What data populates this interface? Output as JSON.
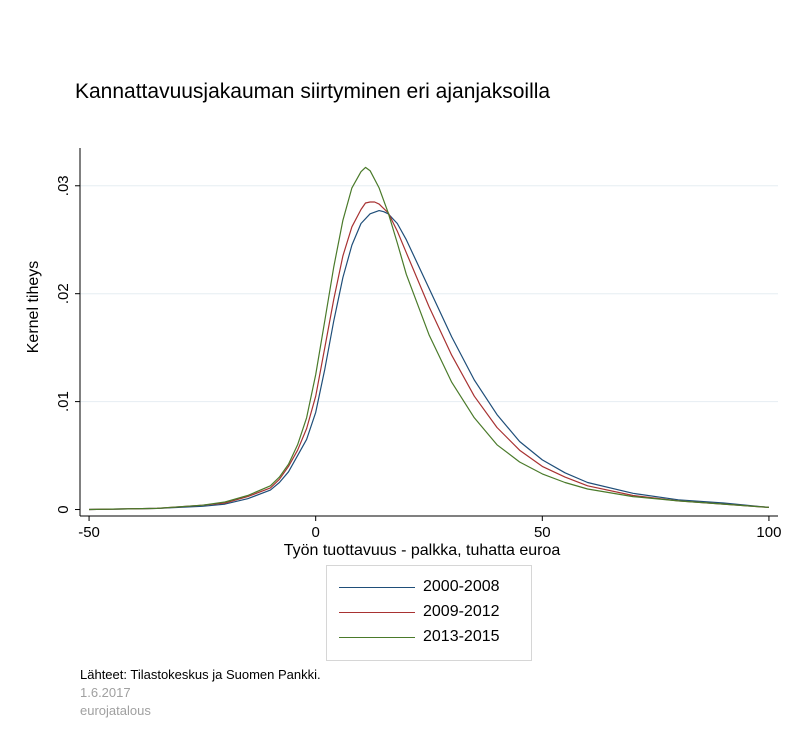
{
  "chart_data": {
    "type": "line",
    "title": "Kannattavuusjakauman siirtyminen eri ajanjaksoilla",
    "xlabel": "Työn tuottavuus - palkka, tuhatta euroa",
    "ylabel": "Kernel tiheys",
    "xlim": [
      -52,
      102
    ],
    "ylim": [
      -0.0006,
      0.0335
    ],
    "x_ticks": [
      -50,
      0,
      50,
      100
    ],
    "x_tick_labels": [
      "-50",
      "0",
      "50",
      "100"
    ],
    "y_ticks": [
      0,
      0.01,
      0.02,
      0.03
    ],
    "y_tick_labels": [
      "0",
      ".01",
      ".02",
      ".03"
    ],
    "grid": true,
    "legend_position": "bottom",
    "series": [
      {
        "name": "2000-2008",
        "color": "#1f4e79",
        "x": [
          -50,
          -35,
          -25,
          -20,
          -15,
          -10,
          -8,
          -6,
          -4,
          -2,
          0,
          2,
          4,
          6,
          8,
          10,
          12,
          14,
          15,
          16,
          18,
          20,
          25,
          30,
          35,
          40,
          45,
          50,
          55,
          60,
          70,
          80,
          90,
          100
        ],
        "y": [
          0,
          0.0001,
          0.0003,
          0.0005,
          0.001,
          0.0018,
          0.0025,
          0.0035,
          0.005,
          0.0065,
          0.009,
          0.013,
          0.0175,
          0.0215,
          0.0245,
          0.0265,
          0.0274,
          0.0277,
          0.0276,
          0.0274,
          0.0265,
          0.025,
          0.0205,
          0.016,
          0.012,
          0.0088,
          0.0063,
          0.0046,
          0.0034,
          0.0025,
          0.0015,
          0.0009,
          0.0006,
          0.0002
        ]
      },
      {
        "name": "2009-2012",
        "color": "#a83232",
        "x": [
          -50,
          -35,
          -25,
          -20,
          -15,
          -10,
          -8,
          -6,
          -4,
          -2,
          0,
          2,
          4,
          6,
          8,
          10,
          11,
          12,
          13,
          14,
          16,
          18,
          20,
          25,
          30,
          35,
          40,
          45,
          50,
          55,
          60,
          70,
          80,
          90,
          100
        ],
        "y": [
          0,
          0.0001,
          0.0004,
          0.0006,
          0.0012,
          0.002,
          0.0028,
          0.004,
          0.0055,
          0.0075,
          0.0105,
          0.015,
          0.0195,
          0.0235,
          0.0262,
          0.0278,
          0.0284,
          0.0285,
          0.0285,
          0.0283,
          0.0275,
          0.0258,
          0.0238,
          0.0188,
          0.0143,
          0.0105,
          0.0076,
          0.0055,
          0.004,
          0.003,
          0.0022,
          0.0013,
          0.0008,
          0.0005,
          0.0002
        ]
      },
      {
        "name": "2013-2015",
        "color": "#4a7a2a",
        "x": [
          -50,
          -35,
          -25,
          -20,
          -15,
          -10,
          -8,
          -6,
          -4,
          -2,
          0,
          2,
          4,
          6,
          8,
          10,
          11,
          12,
          14,
          16,
          18,
          20,
          25,
          30,
          35,
          40,
          45,
          50,
          55,
          60,
          70,
          80,
          90,
          100
        ],
        "y": [
          0,
          0.0001,
          0.0004,
          0.0007,
          0.0013,
          0.0022,
          0.003,
          0.0042,
          0.006,
          0.0085,
          0.0125,
          0.0175,
          0.0225,
          0.0268,
          0.0298,
          0.0313,
          0.0317,
          0.0314,
          0.0298,
          0.0275,
          0.0247,
          0.0218,
          0.0162,
          0.0118,
          0.0085,
          0.006,
          0.0044,
          0.0033,
          0.0025,
          0.0019,
          0.0012,
          0.0008,
          0.0005,
          0.0002
        ]
      }
    ]
  },
  "footer": {
    "source": "Lähteet: Tilastokeskus ja Suomen Pankki.",
    "date": "1.6.2017",
    "brand": "eurojatalous"
  }
}
